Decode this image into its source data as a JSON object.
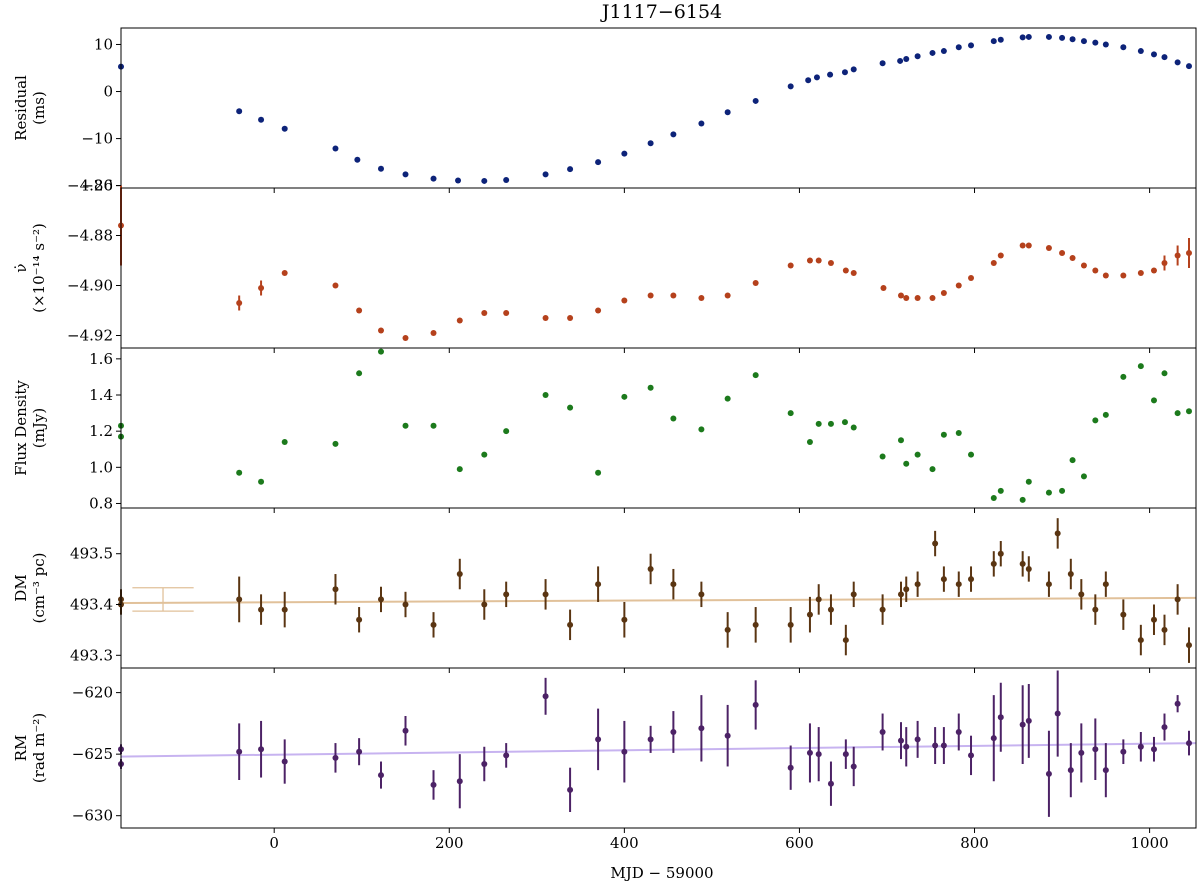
{
  "figure": {
    "title": "J1117−6154",
    "xlabel": "MJD − 59000",
    "x_ticks": [
      0,
      200,
      400,
      600,
      800,
      1000
    ],
    "x_tick_labels": [
      "0",
      "200",
      "400",
      "600",
      "800",
      "1000"
    ],
    "xlim": [
      -175,
      1053
    ]
  },
  "chart_data": [
    {
      "type": "scatter",
      "ylabel_lines": [
        "Residual",
        "(ms)"
      ],
      "ylim": [
        -20.5,
        13.5
      ],
      "y_ticks": [
        10,
        0,
        -10,
        -20
      ],
      "y_tick_labels": [
        "10",
        "0",
        "−10",
        "−20"
      ],
      "color": "#0d2379",
      "errorbars": false,
      "x": [
        -175,
        -40,
        -15,
        12,
        70,
        95,
        122,
        150,
        182,
        210,
        240,
        265,
        310,
        338,
        370,
        400,
        430,
        456,
        488,
        518,
        550,
        590,
        610,
        620,
        635,
        652,
        662,
        695,
        715,
        722,
        735,
        752,
        765,
        782,
        796,
        822,
        830,
        855,
        862,
        885,
        900,
        912,
        925,
        938,
        950,
        970,
        990,
        1005,
        1017,
        1032,
        1045
      ],
      "y": [
        5.3,
        -4.2,
        -6.0,
        -7.9,
        -12.1,
        -14.5,
        -16.4,
        -17.6,
        -18.5,
        -18.9,
        -19.0,
        -18.8,
        -17.6,
        -16.5,
        -15.0,
        -13.2,
        -11.0,
        -9.1,
        -6.8,
        -4.4,
        -2.0,
        1.1,
        2.4,
        3.0,
        3.6,
        4.1,
        4.7,
        6.0,
        6.5,
        6.9,
        7.5,
        8.2,
        8.6,
        9.4,
        9.8,
        10.7,
        11.0,
        11.5,
        11.6,
        11.6,
        11.4,
        11.1,
        10.7,
        10.4,
        10.0,
        9.4,
        8.6,
        7.9,
        7.3,
        6.2,
        5.4
      ],
      "yerr": []
    },
    {
      "type": "scatter",
      "ylabel_lines": [
        "ν̇",
        "(×10⁻¹⁴ s⁻²)"
      ],
      "ylim": [
        -4.925,
        -4.861
      ],
      "y_ticks": [
        -4.86,
        -4.88,
        -4.9,
        -4.92
      ],
      "y_tick_labels": [
        "−4.86",
        "−4.88",
        "−4.90",
        "−4.92"
      ],
      "color": "#b5411c",
      "errorbars": true,
      "x": [
        -175,
        -40,
        -15,
        12,
        70,
        97,
        122,
        150,
        182,
        212,
        240,
        265,
        310,
        338,
        370,
        400,
        430,
        456,
        488,
        518,
        550,
        590,
        612,
        622,
        636,
        653,
        662,
        696,
        716,
        722,
        735,
        752,
        765,
        782,
        796,
        822,
        830,
        855,
        862,
        885,
        900,
        912,
        925,
        938,
        950,
        970,
        990,
        1005,
        1017,
        1032,
        1045
      ],
      "y": [
        -4.876,
        -4.907,
        -4.901,
        -4.895,
        -4.9,
        -4.91,
        -4.918,
        -4.921,
        -4.919,
        -4.914,
        -4.911,
        -4.911,
        -4.913,
        -4.913,
        -4.91,
        -4.906,
        -4.904,
        -4.904,
        -4.905,
        -4.904,
        -4.899,
        -4.892,
        -4.89,
        -4.89,
        -4.891,
        -4.894,
        -4.895,
        -4.901,
        -4.904,
        -4.905,
        -4.905,
        -4.905,
        -4.903,
        -4.9,
        -4.897,
        -4.891,
        -4.888,
        -4.884,
        -4.884,
        -4.885,
        -4.887,
        -4.889,
        -4.892,
        -4.894,
        -4.896,
        -4.896,
        -4.895,
        -4.894,
        -4.891,
        -4.888,
        -4.887
      ],
      "yerr": [
        0.016,
        0.003,
        0.003,
        0.001,
        0.001,
        0.001,
        0.001,
        0.001,
        0.001,
        0.001,
        0.001,
        0.001,
        0.001,
        0.001,
        0.001,
        0.001,
        0.001,
        0.001,
        0.001,
        0.001,
        0.001,
        0.001,
        0.001,
        0.001,
        0.001,
        0.001,
        0.001,
        0.001,
        0.001,
        0.001,
        0.001,
        0.001,
        0.001,
        0.001,
        0.001,
        0.001,
        0.001,
        0.001,
        0.001,
        0.001,
        0.001,
        0.001,
        0.001,
        0.001,
        0.001,
        0.001,
        0.001,
        0.001,
        0.003,
        0.004,
        0.006
      ]
    },
    {
      "type": "scatter",
      "ylabel_lines": [
        "Flux Density",
        "(mJy)"
      ],
      "ylim": [
        0.775,
        1.66
      ],
      "y_ticks": [
        1.6,
        1.4,
        1.2,
        1.0,
        0.8
      ],
      "y_tick_labels": [
        "1.6",
        "1.4",
        "1.2",
        "1.0",
        "0.8"
      ],
      "color": "#1c7a1c",
      "errorbars": false,
      "x": [
        -175,
        -175,
        -40,
        -15,
        12,
        70,
        97,
        122,
        150,
        182,
        212,
        240,
        265,
        310,
        338,
        370,
        400,
        430,
        456,
        488,
        518,
        550,
        590,
        612,
        622,
        636,
        652,
        662,
        695,
        716,
        722,
        735,
        752,
        765,
        782,
        796,
        822,
        830,
        855,
        862,
        885,
        900,
        912,
        925,
        938,
        950,
        970,
        990,
        1005,
        1017,
        1032,
        1045
      ],
      "y": [
        1.23,
        1.17,
        0.97,
        0.92,
        1.14,
        1.13,
        1.52,
        1.64,
        1.23,
        1.23,
        0.99,
        1.07,
        1.2,
        1.4,
        1.33,
        0.97,
        1.39,
        1.44,
        1.27,
        1.21,
        1.38,
        1.51,
        1.3,
        1.14,
        1.24,
        1.24,
        1.25,
        1.22,
        1.06,
        1.15,
        1.02,
        1.07,
        0.99,
        1.18,
        1.19,
        1.07,
        0.83,
        0.87,
        0.82,
        0.92,
        0.86,
        0.87,
        1.04,
        0.95,
        1.26,
        1.29,
        1.5,
        1.56,
        1.37,
        1.52,
        1.3,
        1.31
      ]
    },
    {
      "type": "scatter",
      "ylabel_lines": [
        "DM",
        "(cm⁻³ pc)"
      ],
      "ylim": [
        493.275,
        493.59
      ],
      "y_ticks": [
        493.5,
        493.4,
        493.3
      ],
      "y_tick_labels": [
        "493.5",
        "493.4",
        "493.3"
      ],
      "color": "#5a3512",
      "errorbars": true,
      "fit_color": "#e1c19a",
      "fit": {
        "x": [
          -175,
          1053
        ],
        "y": [
          493.403,
          493.413
        ]
      },
      "ref_errorbar": {
        "x": -127,
        "y": 493.41,
        "yerr": 0.023,
        "xhalfwidth": 35
      },
      "x": [
        -175,
        -175,
        -40,
        -15,
        12,
        70,
        97,
        122,
        150,
        182,
        212,
        240,
        265,
        310,
        338,
        370,
        400,
        430,
        456,
        488,
        518,
        550,
        590,
        612,
        622,
        636,
        653,
        662,
        695,
        716,
        722,
        735,
        755,
        765,
        782,
        796,
        822,
        830,
        855,
        862,
        885,
        895,
        910,
        922,
        938,
        950,
        970,
        990,
        1005,
        1017,
        1032,
        1045
      ],
      "y": [
        493.41,
        493.4,
        493.41,
        493.39,
        493.39,
        493.43,
        493.37,
        493.41,
        493.4,
        493.36,
        493.46,
        493.4,
        493.42,
        493.42,
        493.36,
        493.44,
        493.37,
        493.47,
        493.44,
        493.42,
        493.35,
        493.36,
        493.36,
        493.38,
        493.41,
        493.39,
        493.33,
        493.42,
        493.39,
        493.42,
        493.43,
        493.44,
        493.52,
        493.45,
        493.44,
        493.45,
        493.48,
        493.5,
        493.48,
        493.47,
        493.44,
        493.54,
        493.46,
        493.42,
        493.39,
        493.44,
        493.38,
        493.33,
        493.37,
        493.35,
        493.41,
        493.32
      ],
      "yerr": [
        0.02,
        0.02,
        0.045,
        0.03,
        0.035,
        0.03,
        0.025,
        0.025,
        0.025,
        0.025,
        0.03,
        0.03,
        0.025,
        0.03,
        0.03,
        0.035,
        0.035,
        0.03,
        0.03,
        0.025,
        0.035,
        0.035,
        0.035,
        0.035,
        0.03,
        0.03,
        0.03,
        0.025,
        0.03,
        0.025,
        0.025,
        0.025,
        0.025,
        0.025,
        0.025,
        0.025,
        0.025,
        0.025,
        0.025,
        0.025,
        0.025,
        0.03,
        0.03,
        0.03,
        0.03,
        0.025,
        0.03,
        0.03,
        0.03,
        0.03,
        0.03,
        0.035
      ]
    },
    {
      "type": "scatter",
      "ylabel_lines": [
        "RM",
        "(rad m⁻²)"
      ],
      "ylim": [
        -631.0,
        -618.0
      ],
      "y_ticks": [
        -620,
        -625,
        -630
      ],
      "y_tick_labels": [
        "−620",
        "−625",
        "−630"
      ],
      "color": "#4c2266",
      "errorbars": true,
      "fit_color": "#c7b3f0",
      "fit": {
        "x": [
          -175,
          1053
        ],
        "y": [
          -625.2,
          -624.1
        ]
      },
      "x": [
        -175,
        -175,
        -40,
        -15,
        12,
        70,
        97,
        122,
        150,
        182,
        212,
        240,
        265,
        310,
        338,
        370,
        400,
        430,
        456,
        488,
        518,
        550,
        590,
        612,
        622,
        636,
        653,
        662,
        695,
        716,
        722,
        735,
        755,
        765,
        782,
        796,
        822,
        830,
        855,
        862,
        885,
        895,
        910,
        922,
        938,
        950,
        970,
        990,
        1005,
        1017,
        1032,
        1045
      ],
      "y": [
        -624.6,
        -625.8,
        -624.8,
        -624.6,
        -625.6,
        -625.3,
        -624.8,
        -626.7,
        -623.1,
        -627.5,
        -627.2,
        -625.8,
        -625.1,
        -620.3,
        -627.9,
        -623.8,
        -624.8,
        -623.8,
        -623.2,
        -622.9,
        -623.5,
        -621.0,
        -626.1,
        -624.9,
        -625.0,
        -627.4,
        -625.0,
        -626.0,
        -623.2,
        -623.9,
        -624.4,
        -623.8,
        -624.3,
        -624.3,
        -623.2,
        -625.1,
        -623.7,
        -622.0,
        -622.6,
        -622.3,
        -626.6,
        -621.7,
        -626.3,
        -624.9,
        -624.6,
        -626.3,
        -624.8,
        -624.4,
        -624.6,
        -622.8,
        -620.9,
        -624.1
      ],
      "yerr": [
        0.4,
        0.4,
        2.3,
        2.3,
        1.8,
        1.2,
        1.1,
        1.1,
        1.2,
        1.2,
        2.2,
        1.4,
        1.0,
        1.5,
        1.8,
        2.5,
        2.5,
        1.1,
        1.7,
        2.7,
        2.5,
        2.0,
        1.8,
        2.4,
        2.2,
        1.8,
        1.2,
        1.6,
        1.5,
        1.5,
        1.6,
        1.5,
        1.5,
        1.5,
        1.5,
        1.6,
        3.5,
        2.8,
        3.2,
        3.0,
        3.5,
        3.5,
        2.2,
        2.4,
        2.5,
        2.2,
        1.0,
        1.2,
        1.0,
        1.1,
        0.7,
        1.0
      ]
    }
  ]
}
